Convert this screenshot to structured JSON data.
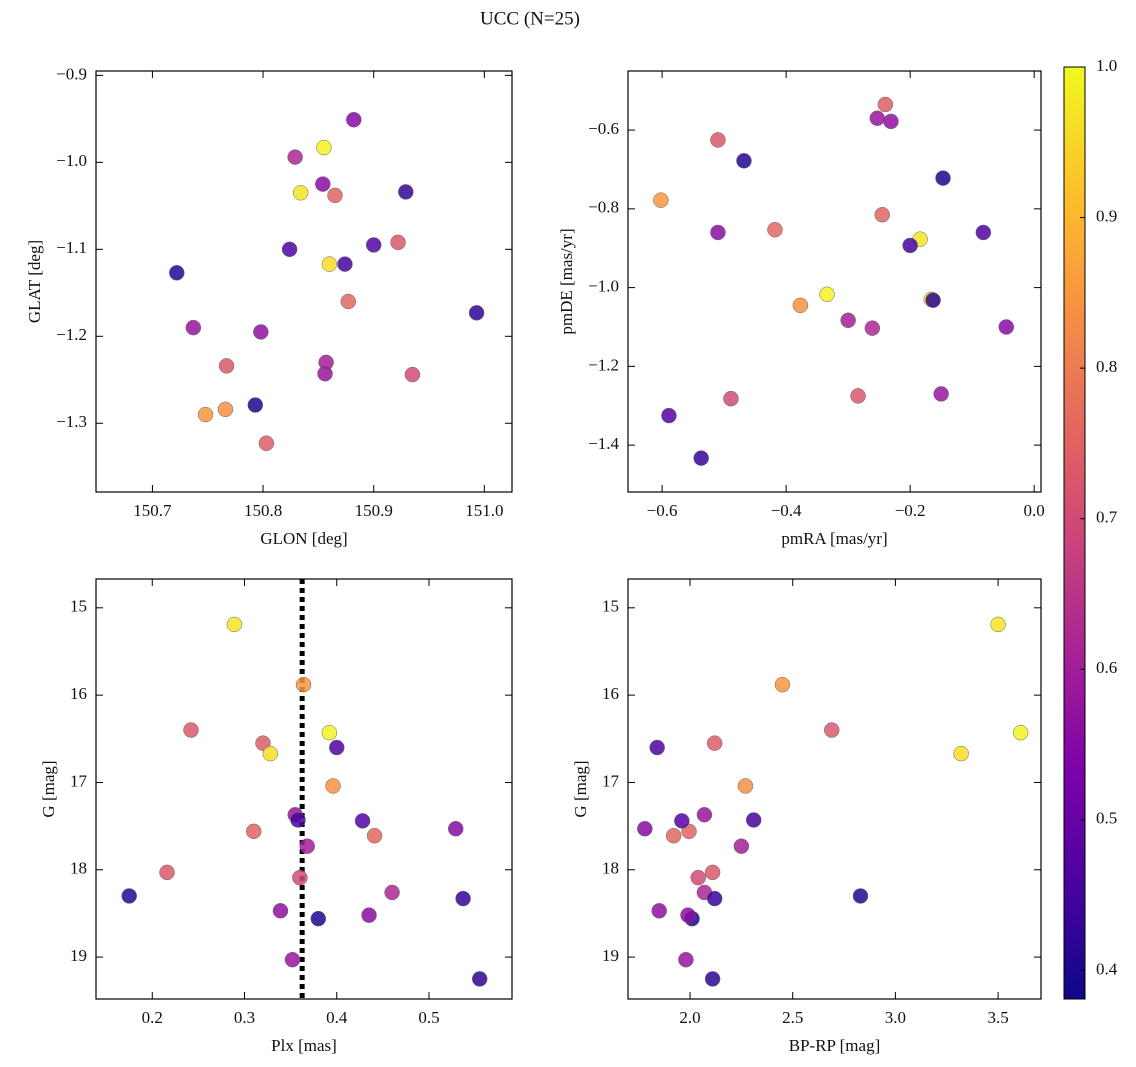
{
  "title": "UCC (N=25)",
  "colorbar": {
    "colormap": "plasma",
    "lim": [
      0.381,
      1.0
    ],
    "ticks": [
      0.4,
      0.5,
      0.6,
      0.7,
      0.8,
      0.9,
      {
        "value": 1.0,
        "label": "1.0"
      }
    ]
  },
  "chart_data": [
    {
      "type": "scatter",
      "xlabel": "GLON [deg]",
      "ylabel": "GLAT [deg]",
      "x": [
        150.722,
        150.737,
        150.748,
        150.766,
        150.767,
        150.793,
        150.798,
        150.803,
        150.824,
        150.829,
        150.834,
        150.854,
        150.855,
        150.856,
        150.857,
        150.86,
        150.865,
        150.874,
        150.877,
        150.882,
        150.9,
        150.922,
        150.929,
        150.935,
        150.993
      ],
      "values": [
        -1.127,
        -1.19,
        -1.29,
        -1.284,
        -1.234,
        -1.279,
        -1.195,
        -1.323,
        -1.1,
        -0.994,
        -1.035,
        -1.025,
        -0.983,
        -1.243,
        -1.23,
        -1.117,
        -1.038,
        -1.117,
        -1.16,
        -0.951,
        -1.095,
        -1.092,
        -1.034,
        -1.244,
        -1.173
      ],
      "color_values": [
        0.41,
        0.58,
        0.85,
        0.84,
        0.73,
        0.4,
        0.57,
        0.74,
        0.46,
        0.62,
        0.97,
        0.56,
        0.99,
        0.58,
        0.6,
        0.96,
        0.75,
        0.45,
        0.76,
        0.55,
        0.47,
        0.73,
        0.43,
        0.7,
        0.42
      ],
      "xlim": [
        150.649,
        151.025
      ],
      "ylim": [
        -1.379,
        -0.895
      ],
      "xticks": [
        150.7,
        150.8,
        150.9,
        {
          "value": 151.0,
          "label": "151.0"
        }
      ],
      "yticks": [
        {
          "value": -1.3,
          "label": "−1.3"
        },
        {
          "value": -1.2,
          "label": "−1.2"
        },
        {
          "value": -1.1,
          "label": "−1.1"
        },
        {
          "value": -1.0,
          "label": "−1.0"
        },
        {
          "value": -0.9,
          "label": "−0.9"
        }
      ]
    },
    {
      "type": "scatter",
      "xlabel": "pmRA [mas/yr]",
      "ylabel": "pmDE [mas/yr]",
      "x": [
        -0.468,
        -0.253,
        -0.602,
        -0.377,
        -0.51,
        -0.147,
        -0.231,
        -0.24,
        -0.082,
        -0.261,
        -0.184,
        -0.51,
        -0.334,
        -0.15,
        -0.3,
        -0.166,
        -0.245,
        -0.2,
        -0.418,
        -0.045,
        -0.589,
        -0.284,
        -0.537,
        -0.489,
        -0.163
      ],
      "values": [
        -0.678,
        -0.57,
        -0.778,
        -1.045,
        -0.625,
        -0.722,
        -0.578,
        -0.535,
        -0.86,
        -1.103,
        -0.877,
        -0.86,
        -1.017,
        -1.27,
        -1.083,
        -1.03,
        -0.815,
        -0.893,
        -0.853,
        -1.1,
        -1.325,
        -1.275,
        -1.433,
        -1.282,
        -1.032
      ],
      "color_values": [
        0.41,
        0.58,
        0.85,
        0.84,
        0.73,
        0.4,
        0.57,
        0.74,
        0.46,
        0.62,
        0.97,
        0.56,
        0.99,
        0.58,
        0.6,
        0.96,
        0.75,
        0.45,
        0.76,
        0.55,
        0.47,
        0.73,
        0.43,
        0.7,
        0.42
      ],
      "xlim": [
        -0.655,
        0.011
      ],
      "ylim": [
        -1.519,
        -0.45
      ],
      "xticks": [
        {
          "value": -0.6,
          "label": "−0.6"
        },
        {
          "value": -0.4,
          "label": "−0.4"
        },
        {
          "value": -0.2,
          "label": "−0.2"
        },
        {
          "value": 0.0,
          "label": "0.0"
        }
      ],
      "yticks": [
        {
          "value": -1.4,
          "label": "−1.4"
        },
        {
          "value": -1.2,
          "label": "−1.2"
        },
        {
          "value": -1.0,
          "label": "−1.0"
        },
        {
          "value": -0.8,
          "label": "−0.8"
        },
        {
          "value": -0.6,
          "label": "−0.6"
        }
      ]
    },
    {
      "type": "scatter",
      "xlabel": "Plx [mas]",
      "ylabel": "G [mag]",
      "x": [
        0.175,
        0.355,
        0.364,
        0.396,
        0.242,
        0.38,
        0.339,
        0.32,
        0.4,
        0.46,
        0.289,
        0.435,
        0.392,
        0.352,
        0.368,
        0.328,
        0.31,
        0.358,
        0.441,
        0.529,
        0.428,
        0.216,
        0.537,
        0.36,
        0.555
      ],
      "values": [
        18.3,
        17.37,
        15.88,
        17.04,
        16.4,
        18.56,
        18.47,
        16.55,
        16.6,
        18.26,
        15.19,
        18.52,
        16.43,
        19.03,
        17.73,
        16.67,
        17.56,
        17.43,
        17.61,
        17.53,
        17.44,
        18.03,
        18.33,
        18.09,
        19.25
      ],
      "color_values": [
        0.41,
        0.58,
        0.85,
        0.84,
        0.73,
        0.4,
        0.57,
        0.74,
        0.46,
        0.62,
        0.97,
        0.56,
        0.99,
        0.58,
        0.6,
        0.96,
        0.75,
        0.45,
        0.76,
        0.55,
        0.47,
        0.73,
        0.43,
        0.7,
        0.42
      ],
      "xlim": [
        0.139,
        0.59
      ],
      "ylim": [
        19.48,
        14.67
      ],
      "xticks": [
        0.2,
        0.3,
        0.4,
        0.5
      ],
      "yticks": [
        15,
        16,
        17,
        18,
        19
      ],
      "vline": 0.3625,
      "vline_color": "#000000"
    },
    {
      "type": "scatter",
      "xlabel": "BP-RP [mag]",
      "ylabel": "G [mag]",
      "x": [
        2.83,
        2.07,
        2.45,
        2.27,
        2.69,
        2.01,
        1.85,
        2.12,
        1.84,
        2.07,
        3.5,
        1.99,
        3.61,
        1.98,
        2.25,
        3.32,
        1.995,
        2.31,
        1.92,
        1.78,
        1.96,
        2.11,
        2.12,
        2.04,
        2.11
      ],
      "values": [
        18.3,
        17.37,
        15.88,
        17.04,
        16.4,
        18.56,
        18.47,
        16.55,
        16.6,
        18.26,
        15.19,
        18.52,
        16.43,
        19.03,
        17.73,
        16.67,
        17.56,
        17.43,
        17.61,
        17.53,
        17.44,
        18.03,
        18.33,
        18.09,
        19.25
      ],
      "color_values": [
        0.41,
        0.58,
        0.85,
        0.84,
        0.73,
        0.4,
        0.57,
        0.74,
        0.46,
        0.62,
        0.97,
        0.56,
        0.99,
        0.58,
        0.6,
        0.96,
        0.75,
        0.45,
        0.76,
        0.55,
        0.47,
        0.73,
        0.43,
        0.7,
        0.42
      ],
      "xlim": [
        1.698,
        3.709
      ],
      "ylim": [
        19.48,
        14.67
      ],
      "xticks": [
        {
          "value": 2.0,
          "label": "2.0"
        },
        2.5,
        {
          "value": 3.0,
          "label": "3.0"
        },
        3.5
      ],
      "yticks": [
        15,
        16,
        17,
        18,
        19
      ]
    }
  ]
}
